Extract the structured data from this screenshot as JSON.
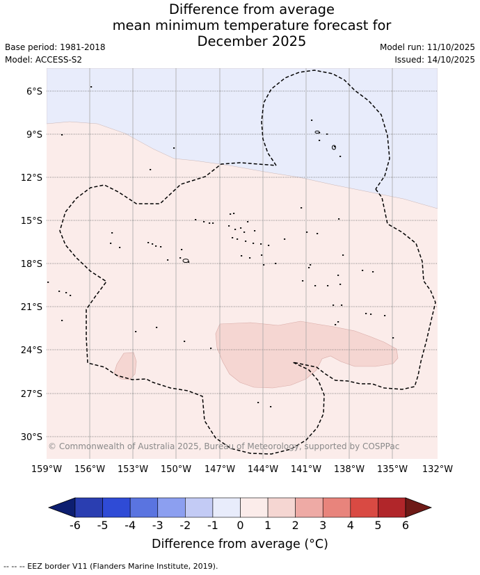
{
  "title": {
    "line1": "Difference from average",
    "line2": "mean minimum temperature forecast for",
    "line3": "December 2025"
  },
  "info_left": {
    "base_period": "Base period: 1981-2018",
    "model": "Model: ACCESS-S2"
  },
  "info_right": {
    "model_run": "Model run: 11/10/2025",
    "issued": "Issued: 14/10/2025"
  },
  "map": {
    "lat_labels": [
      "6°S",
      "9°S",
      "12°S",
      "15°S",
      "18°S",
      "21°S",
      "24°S",
      "27°S",
      "30°S"
    ],
    "lon_labels": [
      "159°W",
      "156°W",
      "153°W",
      "150°W",
      "147°W",
      "144°W",
      "141°W",
      "138°W",
      "135°W",
      "132°W"
    ],
    "copyright": "© Commonwealth of Australia 2025, Bureau of Meteorology, supported by COSPPac",
    "colors": {
      "zone_minus1_0": "#e8ecfb",
      "zone_0_1": "#fbecea",
      "zone_1_2": "#f5d6d2",
      "land": "#000000",
      "eez_border": "#000000"
    }
  },
  "colorbar": {
    "tick_labels": [
      "-6",
      "-5",
      "-4",
      "-3",
      "-2",
      "-1",
      "0",
      "1",
      "2",
      "3",
      "4",
      "5",
      "6"
    ],
    "colors": [
      "#0d1e70",
      "#2a3eb1",
      "#2f4bd6",
      "#5a74e0",
      "#8c9ff0",
      "#c3cbf5",
      "#e8ecfb",
      "#fbecea",
      "#f5d6d2",
      "#eeaaa5",
      "#e8847c",
      "#d94a43",
      "#b1262a",
      "#6e1a17"
    ],
    "label": "Difference from average (°C)"
  },
  "footnote": "-- -- -- EEZ border V11 (Flanders Marine Institute, 2019)."
}
